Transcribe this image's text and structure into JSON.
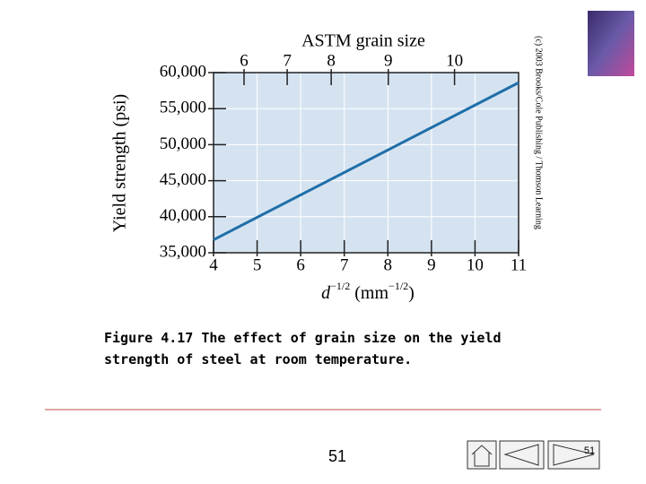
{
  "chart_data": {
    "type": "line",
    "title": "ASTM grain size",
    "ylabel": "Yield strength (psi)",
    "xlabel": [
      "d",
      "−1/2",
      " (mm",
      "−1/2",
      ")"
    ],
    "x": [
      4,
      11
    ],
    "values": [
      36800,
      58600
    ],
    "color": "#1f6fa8",
    "xlim": [
      4,
      11
    ],
    "xticks": [
      4,
      5,
      6,
      7,
      8,
      9,
      10,
      11
    ],
    "x2ticks": [
      {
        "value": 4.7,
        "label": "6"
      },
      {
        "value": 5.69,
        "label": "7"
      },
      {
        "value": 6.7,
        "label": "8"
      },
      {
        "value": 8.01,
        "label": "9"
      },
      {
        "value": 9.53,
        "label": "10"
      }
    ],
    "ylim": [
      35000,
      60000
    ],
    "yticks": [
      {
        "value": 35000,
        "label": "35,000"
      },
      {
        "value": 40000,
        "label": "40,000"
      },
      {
        "value": 45000,
        "label": "45,000"
      },
      {
        "value": 50000,
        "label": "50,000"
      },
      {
        "value": 55000,
        "label": "55,000"
      },
      {
        "value": 60000,
        "label": "60,000"
      }
    ],
    "grid": true
  },
  "copyright": "(c) 2003 Brooks/Cole Publishing / Thomson Learning",
  "caption": [
    "Figure 4.17  The effect of grain size on the yield",
    "strength of steel at room temperature."
  ],
  "footer": {
    "page": "51",
    "page_small": "51"
  }
}
